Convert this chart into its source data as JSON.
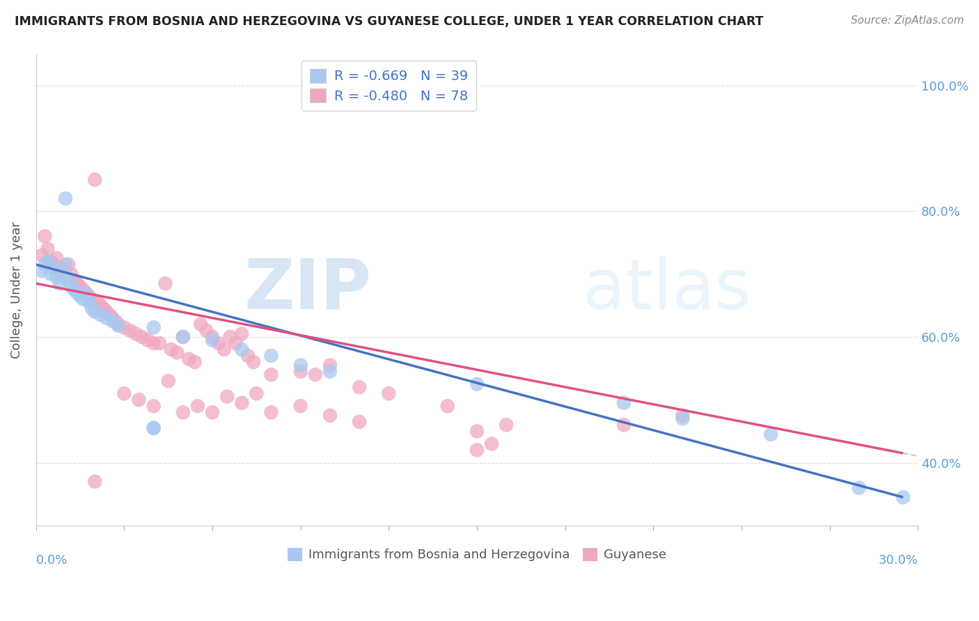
{
  "title": "IMMIGRANTS FROM BOSNIA AND HERZEGOVINA VS GUYANESE COLLEGE, UNDER 1 YEAR CORRELATION CHART",
  "source": "Source: ZipAtlas.com",
  "ylabel": "College, Under 1 year",
  "legend_bosnia_r": "-0.669",
  "legend_bosnia_n": "39",
  "legend_guyanese_r": "-0.480",
  "legend_guyanese_n": "78",
  "xlim": [
    0.0,
    0.3
  ],
  "ylim": [
    0.3,
    1.05
  ],
  "blue_color": "#a8c8f0",
  "pink_color": "#f0a8c0",
  "blue_line_color": "#4472c4",
  "pink_line_color": "#e05080",
  "watermark_zip": "ZIP",
  "watermark_atlas": "atlas",
  "bosnia_points": [
    [
      0.002,
      0.705
    ],
    [
      0.003,
      0.715
    ],
    [
      0.004,
      0.72
    ],
    [
      0.005,
      0.7
    ],
    [
      0.006,
      0.71
    ],
    [
      0.007,
      0.695
    ],
    [
      0.008,
      0.685
    ],
    [
      0.009,
      0.7
    ],
    [
      0.01,
      0.715
    ],
    [
      0.011,
      0.69
    ],
    [
      0.012,
      0.68
    ],
    [
      0.013,
      0.675
    ],
    [
      0.014,
      0.67
    ],
    [
      0.015,
      0.665
    ],
    [
      0.016,
      0.66
    ],
    [
      0.017,
      0.668
    ],
    [
      0.018,
      0.655
    ],
    [
      0.019,
      0.645
    ],
    [
      0.02,
      0.64
    ],
    [
      0.022,
      0.635
    ],
    [
      0.024,
      0.63
    ],
    [
      0.026,
      0.625
    ],
    [
      0.028,
      0.618
    ],
    [
      0.01,
      0.82
    ],
    [
      0.04,
      0.615
    ],
    [
      0.05,
      0.6
    ],
    [
      0.06,
      0.595
    ],
    [
      0.07,
      0.58
    ],
    [
      0.08,
      0.57
    ],
    [
      0.09,
      0.555
    ],
    [
      0.1,
      0.545
    ],
    [
      0.04,
      0.455
    ],
    [
      0.15,
      0.525
    ],
    [
      0.2,
      0.495
    ],
    [
      0.22,
      0.47
    ],
    [
      0.25,
      0.445
    ],
    [
      0.04,
      0.455
    ],
    [
      0.28,
      0.36
    ],
    [
      0.295,
      0.345
    ]
  ],
  "guyanese_points": [
    [
      0.002,
      0.73
    ],
    [
      0.003,
      0.76
    ],
    [
      0.004,
      0.74
    ],
    [
      0.005,
      0.72
    ],
    [
      0.006,
      0.715
    ],
    [
      0.007,
      0.725
    ],
    [
      0.008,
      0.71
    ],
    [
      0.009,
      0.705
    ],
    [
      0.01,
      0.695
    ],
    [
      0.011,
      0.715
    ],
    [
      0.012,
      0.7
    ],
    [
      0.013,
      0.69
    ],
    [
      0.014,
      0.685
    ],
    [
      0.015,
      0.68
    ],
    [
      0.016,
      0.675
    ],
    [
      0.017,
      0.67
    ],
    [
      0.018,
      0.665
    ],
    [
      0.019,
      0.66
    ],
    [
      0.02,
      0.85
    ],
    [
      0.021,
      0.655
    ],
    [
      0.022,
      0.65
    ],
    [
      0.023,
      0.645
    ],
    [
      0.024,
      0.64
    ],
    [
      0.025,
      0.635
    ],
    [
      0.026,
      0.63
    ],
    [
      0.027,
      0.625
    ],
    [
      0.028,
      0.62
    ],
    [
      0.03,
      0.615
    ],
    [
      0.032,
      0.61
    ],
    [
      0.034,
      0.605
    ],
    [
      0.036,
      0.6
    ],
    [
      0.038,
      0.595
    ],
    [
      0.04,
      0.59
    ],
    [
      0.042,
      0.59
    ],
    [
      0.044,
      0.685
    ],
    [
      0.046,
      0.58
    ],
    [
      0.048,
      0.575
    ],
    [
      0.05,
      0.6
    ],
    [
      0.052,
      0.565
    ],
    [
      0.054,
      0.56
    ],
    [
      0.056,
      0.62
    ],
    [
      0.058,
      0.61
    ],
    [
      0.06,
      0.6
    ],
    [
      0.062,
      0.59
    ],
    [
      0.064,
      0.58
    ],
    [
      0.066,
      0.6
    ],
    [
      0.068,
      0.59
    ],
    [
      0.07,
      0.605
    ],
    [
      0.072,
      0.57
    ],
    [
      0.074,
      0.56
    ],
    [
      0.08,
      0.54
    ],
    [
      0.09,
      0.545
    ],
    [
      0.095,
      0.54
    ],
    [
      0.1,
      0.555
    ],
    [
      0.11,
      0.52
    ],
    [
      0.03,
      0.51
    ],
    [
      0.035,
      0.5
    ],
    [
      0.04,
      0.49
    ],
    [
      0.045,
      0.53
    ],
    [
      0.05,
      0.48
    ],
    [
      0.055,
      0.49
    ],
    [
      0.06,
      0.48
    ],
    [
      0.065,
      0.505
    ],
    [
      0.07,
      0.495
    ],
    [
      0.075,
      0.51
    ],
    [
      0.08,
      0.48
    ],
    [
      0.09,
      0.49
    ],
    [
      0.1,
      0.475
    ],
    [
      0.11,
      0.465
    ],
    [
      0.12,
      0.51
    ],
    [
      0.14,
      0.49
    ],
    [
      0.15,
      0.45
    ],
    [
      0.16,
      0.46
    ],
    [
      0.2,
      0.46
    ],
    [
      0.22,
      0.475
    ],
    [
      0.02,
      0.37
    ],
    [
      0.15,
      0.42
    ],
    [
      0.155,
      0.43
    ]
  ],
  "bos_trend_x0": 0.0,
  "bos_trend_y0": 0.715,
  "bos_trend_x1": 0.295,
  "bos_trend_y1": 0.345,
  "guy_trend_x0": 0.0,
  "guy_trend_y0": 0.685,
  "guy_trend_x1": 0.295,
  "guy_trend_y1": 0.415
}
